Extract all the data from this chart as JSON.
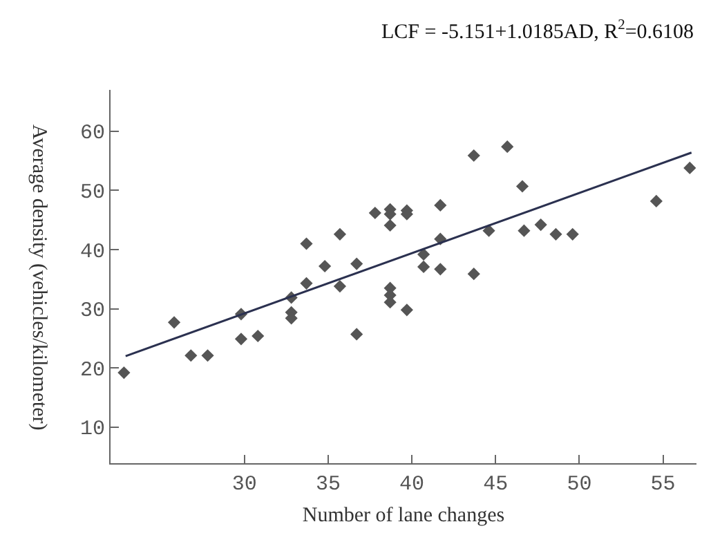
{
  "chart_data": {
    "type": "scatter",
    "title": "LCF = -5.151+1.0185AD, R$^{2}$=0.6108",
    "xlabel": "Number of lane changes",
    "ylabel": "Average density (vehicles/kilometer)",
    "series": [
      {
        "color": "#555555",
        "marker": "diamond",
        "x": [
          22.8,
          25.8,
          26.8,
          27.8,
          29.8,
          29.8,
          30.8,
          32.8,
          32.8,
          32.8,
          33.7,
          33.7,
          34.8,
          35.7,
          35.7,
          36.7,
          36.7,
          37.8,
          38.7,
          38.7,
          38.7,
          38.7,
          38.7,
          38.7,
          39.7,
          39.7,
          39.7,
          40.7,
          40.7,
          41.7,
          41.7,
          41.7,
          43.7,
          43.7,
          44.6,
          45.7,
          46.6,
          46.7,
          47.7,
          48.6,
          49.6,
          54.6,
          56.6
        ],
        "values": [
          19.2,
          27.7,
          22.1,
          22.1,
          29.1,
          24.9,
          25.4,
          31.9,
          29.4,
          28.4,
          34.3,
          41.0,
          37.2,
          42.6,
          33.8,
          37.6,
          25.7,
          46.2,
          46.8,
          46.0,
          44.1,
          33.5,
          32.3,
          31.1,
          46.6,
          46.0,
          29.8,
          39.2,
          37.1,
          47.5,
          41.8,
          36.7,
          55.9,
          35.9,
          43.2,
          57.4,
          50.7,
          43.2,
          44.2,
          42.6,
          42.6,
          48.2,
          53.8
        ]
      },
      {
        "type": "line",
        "color": "#2b3150",
        "marker": "none",
        "x": [
          22.9,
          56.7
        ],
        "values": [
          22.0,
          56.4
        ]
      }
    ],
    "xlim": [
      22,
      57
    ],
    "ylim": [
      3.9,
      67
    ],
    "xticks": [
      30,
      35,
      40,
      45,
      50,
      55
    ],
    "yticks": [
      10,
      20,
      30,
      40,
      50,
      60
    ],
    "legend": false
  }
}
